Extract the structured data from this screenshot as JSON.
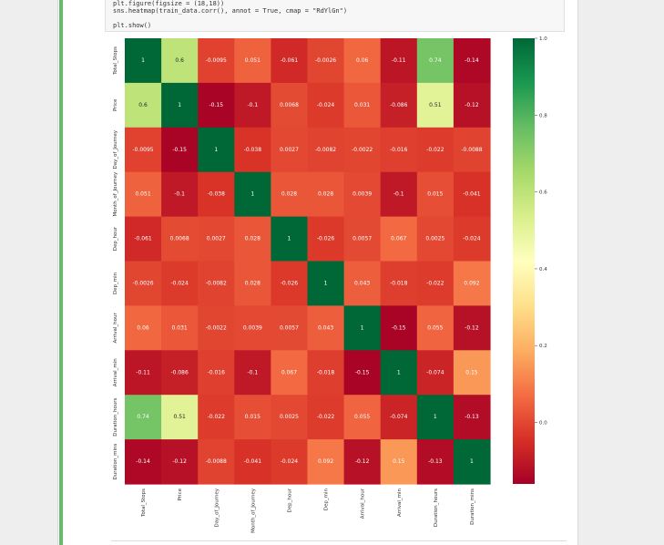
{
  "code": {
    "lines": [
      "plt.figure(figsize = (18,18))",
      "sns.heatmap(train_data.corr(), annot = True, cmap = \"RdYlGn\")",
      "",
      "plt.show()"
    ]
  },
  "colorbar": {
    "ticks": [
      {
        "value": 1.0,
        "label": "1.0"
      },
      {
        "value": 0.8,
        "label": "0.8"
      },
      {
        "value": 0.6,
        "label": "0.6"
      },
      {
        "value": 0.4,
        "label": "0.4"
      },
      {
        "value": 0.2,
        "label": "0.2"
      },
      {
        "value": 0.0,
        "label": "0.0"
      }
    ],
    "min": -0.16,
    "max": 1.0
  },
  "chart_data": {
    "type": "heatmap",
    "cmap": "RdYlGn",
    "title": "",
    "xlabel": "",
    "ylabel": "",
    "labels": [
      "Total_Stops",
      "Price",
      "Day_of_Journey",
      "Month_of_Journey",
      "Dep_hour",
      "Dep_min",
      "Arrival_hour",
      "Arrival_min",
      "Duration_hours",
      "Duration_mins"
    ],
    "annotations": [
      [
        "1",
        "0.6",
        "-0.0095",
        "0.051",
        "-0.061",
        "-0.0026",
        "0.06",
        "-0.11",
        "0.74",
        "-0.14"
      ],
      [
        "0.6",
        "1",
        "-0.15",
        "-0.1",
        "0.0068",
        "-0.024",
        "0.031",
        "-0.086",
        "0.51",
        "-0.12"
      ],
      [
        "-0.0095",
        "-0.15",
        "1",
        "-0.038",
        "0.0027",
        "-0.0082",
        "-0.0022",
        "-0.016",
        "-0.022",
        "-0.0088"
      ],
      [
        "0.051",
        "-0.1",
        "-0.038",
        "1",
        "0.028",
        "0.028",
        "0.0039",
        "-0.1",
        "0.015",
        "-0.041"
      ],
      [
        "-0.061",
        "0.0068",
        "0.0027",
        "0.028",
        "1",
        "-0.026",
        "0.0057",
        "0.067",
        "0.0025",
        "-0.024"
      ],
      [
        "-0.0026",
        "-0.024",
        "-0.0082",
        "0.028",
        "-0.026",
        "1",
        "0.043",
        "-0.018",
        "-0.022",
        "0.092"
      ],
      [
        "0.06",
        "0.031",
        "-0.0022",
        "0.0039",
        "0.0057",
        "0.043",
        "1",
        "-0.15",
        "0.055",
        "-0.12"
      ],
      [
        "-0.11",
        "-0.086",
        "-0.016",
        "-0.1",
        "0.067",
        "-0.018",
        "-0.15",
        "1",
        "-0.074",
        "0.15"
      ],
      [
        "0.74",
        "0.51",
        "-0.022",
        "0.015",
        "0.0025",
        "-0.022",
        "0.055",
        "-0.074",
        "1",
        "-0.13"
      ],
      [
        "-0.14",
        "-0.12",
        "-0.0088",
        "-0.041",
        "-0.024",
        "0.092",
        "-0.12",
        "0.15",
        "-0.13",
        "1"
      ]
    ]
  }
}
